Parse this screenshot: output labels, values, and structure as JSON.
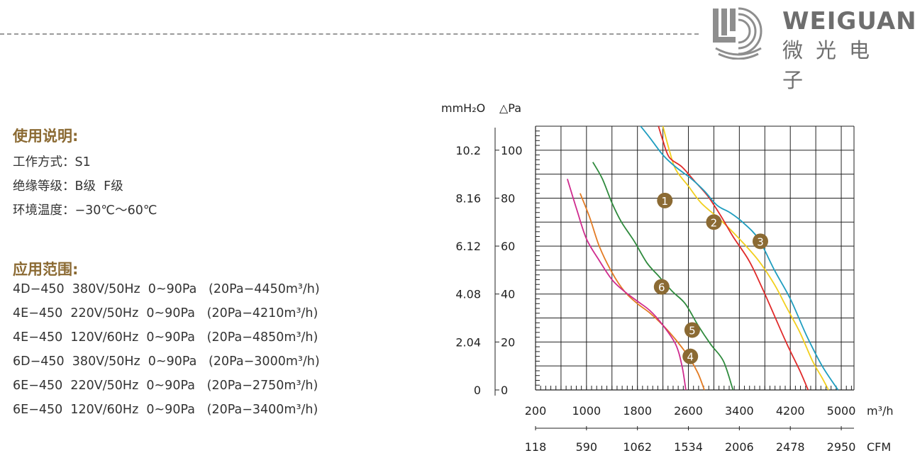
{
  "brand": {
    "name_en": "WEIGUANG",
    "name_cn": "微光电子"
  },
  "usage": {
    "title": "使用说明:",
    "lines": [
      "工作方式：S1",
      "绝缘等级：B级  F级",
      "环境温度：−30℃～60℃"
    ]
  },
  "application": {
    "title": "应用范围:",
    "models": [
      "4D−450  380V/50Hz  0~90Pa   (20Pa−4450m³/h)",
      "4E−450  220V/50Hz  0~90Pa   (20Pa−4210m³/h)",
      "4E−450  120V/60Hz  0~90Pa   (20Pa−4850m³/h)",
      "6D−450  380V/50Hz  0~90Pa   (20Pa−3000m³/h)",
      "6E−450  220V/50Hz  0~90Pa   (20Pa−2750m³/h)",
      "6E−450  120V/60Hz  0~90Pa   (20Pa−3400m³/h)"
    ]
  },
  "chart_data": {
    "type": "line",
    "ylabel_left": "mmH₂O",
    "ylabel_right": "△Pa",
    "xlabel_bottom": "m³/h",
    "xlabel_cfm": "CFM",
    "xlim": [
      200,
      5200
    ],
    "ylim": [
      0,
      110
    ],
    "x_ticks": [
      200,
      1000,
      1800,
      2600,
      3400,
      4200,
      5000
    ],
    "cfm_ticks": [
      "118",
      "590",
      "1062",
      "1534",
      "2006",
      "2478",
      "2950"
    ],
    "y_ticks_pa": [
      0,
      20,
      40,
      60,
      80,
      100
    ],
    "y_ticks_mm": [
      "0",
      "2.04",
      "4.08",
      "6.12",
      "8.16",
      "10.2"
    ],
    "grid": true,
    "series": [
      {
        "name": "1",
        "color": "#f2cf1e",
        "label_at": [
          2230,
          79
        ],
        "points": [
          [
            2200,
            110
          ],
          [
            2300,
            100
          ],
          [
            2400,
            92
          ],
          [
            2600,
            85
          ],
          [
            2800,
            78
          ],
          [
            3100,
            71
          ],
          [
            3400,
            63
          ],
          [
            3700,
            54
          ],
          [
            3950,
            44
          ],
          [
            4150,
            34
          ],
          [
            4350,
            24
          ],
          [
            4550,
            12
          ],
          [
            4700,
            5
          ],
          [
            4800,
            0
          ]
        ]
      },
      {
        "name": "2",
        "color": "#e02a2a",
        "label_at": [
          3000,
          70
        ],
        "points": [
          [
            2130,
            110
          ],
          [
            2200,
            104
          ],
          [
            2300,
            97
          ],
          [
            2500,
            93
          ],
          [
            2700,
            87
          ],
          [
            2900,
            81
          ],
          [
            3100,
            73
          ],
          [
            3300,
            64
          ],
          [
            3550,
            54
          ],
          [
            3750,
            43
          ],
          [
            3950,
            31
          ],
          [
            4150,
            19
          ],
          [
            4350,
            8
          ],
          [
            4480,
            0
          ]
        ]
      },
      {
        "name": "3",
        "color": "#1f9dbf",
        "label_at": [
          3730,
          62
        ],
        "points": [
          [
            1850,
            110
          ],
          [
            2000,
            105
          ],
          [
            2200,
            98
          ],
          [
            2400,
            93
          ],
          [
            2650,
            88
          ],
          [
            2850,
            83
          ],
          [
            3050,
            77
          ],
          [
            3250,
            74
          ],
          [
            3450,
            70
          ],
          [
            3700,
            63
          ],
          [
            3950,
            50
          ],
          [
            4200,
            38
          ],
          [
            4450,
            23
          ],
          [
            4700,
            10
          ],
          [
            4950,
            0
          ]
        ]
      },
      {
        "name": "4",
        "color": "#e37b23",
        "label_at": [
          2630,
          14
        ],
        "points": [
          [
            900,
            82
          ],
          [
            1050,
            72
          ],
          [
            1200,
            60
          ],
          [
            1400,
            49
          ],
          [
            1600,
            41
          ],
          [
            1800,
            36
          ],
          [
            2000,
            32
          ],
          [
            2200,
            27
          ],
          [
            2400,
            21
          ],
          [
            2600,
            14
          ],
          [
            2750,
            7
          ],
          [
            2850,
            0
          ]
        ]
      },
      {
        "name": "5",
        "color": "#cf2b8e",
        "label_at": [
          2660,
          25
        ],
        "points": [
          [
            700,
            88
          ],
          [
            850,
            75
          ],
          [
            1000,
            63
          ],
          [
            1200,
            54
          ],
          [
            1400,
            46
          ],
          [
            1600,
            41
          ],
          [
            1800,
            37
          ],
          [
            2000,
            33
          ],
          [
            2200,
            27
          ],
          [
            2400,
            19
          ],
          [
            2500,
            10
          ],
          [
            2560,
            0
          ]
        ]
      },
      {
        "name": "6",
        "color": "#2f8a3d",
        "label_at": [
          2180,
          43
        ],
        "points": [
          [
            1100,
            95
          ],
          [
            1250,
            88
          ],
          [
            1400,
            78
          ],
          [
            1550,
            70
          ],
          [
            1750,
            62
          ],
          [
            1950,
            53
          ],
          [
            2150,
            47
          ],
          [
            2350,
            41
          ],
          [
            2550,
            36
          ],
          [
            2750,
            27
          ],
          [
            2950,
            19
          ],
          [
            3150,
            12
          ],
          [
            3300,
            0
          ]
        ]
      }
    ]
  }
}
